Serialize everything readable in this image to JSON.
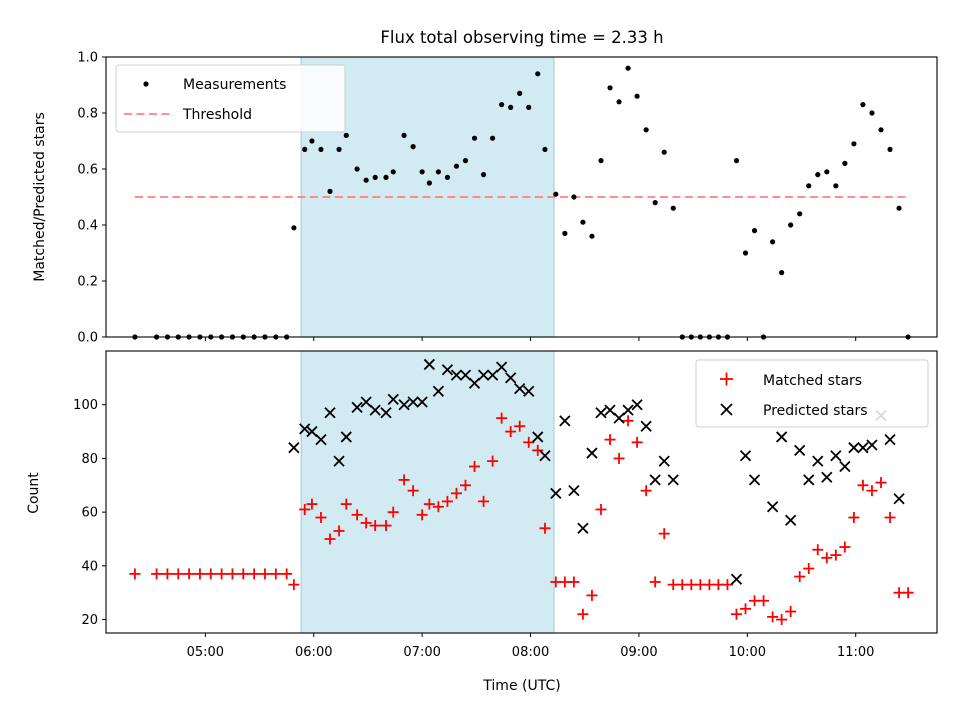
{
  "chart_data": {
    "type": "scatter",
    "title": "Flux total observing time = 2.33 h",
    "xlabel": "Time (UTC)",
    "x_ticks": [
      "05:00",
      "06:00",
      "07:00",
      "08:00",
      "09:00",
      "10:00",
      "11:00"
    ],
    "highlight_span": {
      "start": "05:53",
      "end": "08:13",
      "color": "#add8e6"
    },
    "panels": [
      {
        "id": "ratio",
        "ylabel": "Matched/Predicted stars",
        "ylim": [
          0,
          1.0
        ],
        "yticks": [
          "0.0",
          "0.2",
          "0.4",
          "0.6",
          "0.8",
          "1.0"
        ],
        "legend_position": "top-left",
        "series": [
          {
            "name": "Measurements",
            "marker": "dot",
            "color": "#000000",
            "points": [
              [
                "04:21",
                0
              ],
              [
                "04:33",
                0
              ],
              [
                "04:39",
                0
              ],
              [
                "04:45",
                0
              ],
              [
                "04:51",
                0
              ],
              [
                "04:57",
                0
              ],
              [
                "05:03",
                0
              ],
              [
                "05:09",
                0
              ],
              [
                "05:15",
                0
              ],
              [
                "05:21",
                0
              ],
              [
                "05:27",
                0
              ],
              [
                "05:33",
                0
              ],
              [
                "05:39",
                0
              ],
              [
                "05:45",
                0
              ],
              [
                "05:49",
                0.39
              ],
              [
                "05:55",
                0.67
              ],
              [
                "05:59",
                0.7
              ],
              [
                "06:04",
                0.67
              ],
              [
                "06:09",
                0.52
              ],
              [
                "06:14",
                0.67
              ],
              [
                "06:18",
                0.72
              ],
              [
                "06:24",
                0.6
              ],
              [
                "06:29",
                0.56
              ],
              [
                "06:34",
                0.57
              ],
              [
                "06:40",
                0.57
              ],
              [
                "06:44",
                0.59
              ],
              [
                "06:50",
                0.72
              ],
              [
                "06:55",
                0.68
              ],
              [
                "07:00",
                0.59
              ],
              [
                "07:04",
                0.55
              ],
              [
                "07:09",
                0.59
              ],
              [
                "07:14",
                0.57
              ],
              [
                "07:19",
                0.61
              ],
              [
                "07:24",
                0.63
              ],
              [
                "07:29",
                0.71
              ],
              [
                "07:34",
                0.58
              ],
              [
                "07:39",
                0.71
              ],
              [
                "07:44",
                0.83
              ],
              [
                "07:49",
                0.82
              ],
              [
                "07:54",
                0.87
              ],
              [
                "07:59",
                0.82
              ],
              [
                "08:04",
                0.94
              ],
              [
                "08:08",
                0.67
              ],
              [
                "08:14",
                0.51
              ],
              [
                "08:19",
                0.37
              ],
              [
                "08:24",
                0.5
              ],
              [
                "08:29",
                0.41
              ],
              [
                "08:34",
                0.36
              ],
              [
                "08:39",
                0.63
              ],
              [
                "08:44",
                0.89
              ],
              [
                "08:49",
                0.84
              ],
              [
                "08:54",
                0.96
              ],
              [
                "08:59",
                0.86
              ],
              [
                "09:04",
                0.74
              ],
              [
                "09:09",
                0.48
              ],
              [
                "09:14",
                0.66
              ],
              [
                "09:19",
                0.46
              ],
              [
                "09:24",
                0
              ],
              [
                "09:29",
                0
              ],
              [
                "09:34",
                0
              ],
              [
                "09:39",
                0
              ],
              [
                "09:44",
                0
              ],
              [
                "09:49",
                0
              ],
              [
                "09:54",
                0.63
              ],
              [
                "09:59",
                0.3
              ],
              [
                "10:04",
                0.38
              ],
              [
                "10:09",
                0
              ],
              [
                "10:14",
                0.34
              ],
              [
                "10:19",
                0.23
              ],
              [
                "10:24",
                0.4
              ],
              [
                "10:29",
                0.44
              ],
              [
                "10:34",
                0.54
              ],
              [
                "10:39",
                0.58
              ],
              [
                "10:44",
                0.59
              ],
              [
                "10:49",
                0.54
              ],
              [
                "10:54",
                0.62
              ],
              [
                "10:59",
                0.69
              ],
              [
                "11:04",
                0.83
              ],
              [
                "11:09",
                0.8
              ],
              [
                "11:14",
                0.74
              ],
              [
                "11:19",
                0.67
              ],
              [
                "11:24",
                0.46
              ],
              [
                "11:29",
                0
              ]
            ]
          },
          {
            "name": "Threshold",
            "marker": "dashed-line",
            "color": "#ff7f7f",
            "value": 0.5,
            "x_range": [
              "04:21",
              "11:29"
            ]
          }
        ]
      },
      {
        "id": "counts",
        "ylabel": "Count",
        "ylim": [
          15,
          120
        ],
        "yticks": [
          "20",
          "40",
          "60",
          "80",
          "100"
        ],
        "legend_position": "top-right",
        "series": [
          {
            "name": "Matched stars",
            "marker": "plus",
            "color": "#ff0000",
            "points": [
              [
                "04:21",
                37
              ],
              [
                "04:33",
                37
              ],
              [
                "04:39",
                37
              ],
              [
                "04:45",
                37
              ],
              [
                "04:51",
                37
              ],
              [
                "04:57",
                37
              ],
              [
                "05:03",
                37
              ],
              [
                "05:09",
                37
              ],
              [
                "05:15",
                37
              ],
              [
                "05:21",
                37
              ],
              [
                "05:27",
                37
              ],
              [
                "05:33",
                37
              ],
              [
                "05:39",
                37
              ],
              [
                "05:45",
                37
              ],
              [
                "05:49",
                33
              ],
              [
                "05:55",
                61
              ],
              [
                "05:59",
                63
              ],
              [
                "06:04",
                58
              ],
              [
                "06:09",
                50
              ],
              [
                "06:14",
                53
              ],
              [
                "06:18",
                63
              ],
              [
                "06:24",
                59
              ],
              [
                "06:29",
                56
              ],
              [
                "06:34",
                55
              ],
              [
                "06:40",
                55
              ],
              [
                "06:44",
                60
              ],
              [
                "06:50",
                72
              ],
              [
                "06:55",
                68
              ],
              [
                "07:00",
                59
              ],
              [
                "07:04",
                63
              ],
              [
                "07:09",
                62
              ],
              [
                "07:14",
                64
              ],
              [
                "07:19",
                67
              ],
              [
                "07:24",
                70
              ],
              [
                "07:29",
                77
              ],
              [
                "07:34",
                64
              ],
              [
                "07:39",
                79
              ],
              [
                "07:44",
                95
              ],
              [
                "07:49",
                90
              ],
              [
                "07:54",
                92
              ],
              [
                "07:59",
                86
              ],
              [
                "08:04",
                83
              ],
              [
                "08:08",
                54
              ],
              [
                "08:14",
                34
              ],
              [
                "08:19",
                34
              ],
              [
                "08:24",
                34
              ],
              [
                "08:29",
                22
              ],
              [
                "08:34",
                29
              ],
              [
                "08:39",
                61
              ],
              [
                "08:44",
                87
              ],
              [
                "08:49",
                80
              ],
              [
                "08:54",
                94
              ],
              [
                "08:59",
                86
              ],
              [
                "09:04",
                68
              ],
              [
                "09:09",
                34
              ],
              [
                "09:14",
                52
              ],
              [
                "09:19",
                33
              ],
              [
                "09:24",
                33
              ],
              [
                "09:29",
                33
              ],
              [
                "09:34",
                33
              ],
              [
                "09:39",
                33
              ],
              [
                "09:44",
                33
              ],
              [
                "09:49",
                33
              ],
              [
                "09:54",
                22
              ],
              [
                "09:59",
                24
              ],
              [
                "10:04",
                27
              ],
              [
                "10:09",
                27
              ],
              [
                "10:14",
                21
              ],
              [
                "10:19",
                20
              ],
              [
                "10:24",
                23
              ],
              [
                "10:29",
                36
              ],
              [
                "10:34",
                39
              ],
              [
                "10:39",
                46
              ],
              [
                "10:44",
                43
              ],
              [
                "10:49",
                44
              ],
              [
                "10:54",
                47
              ],
              [
                "10:59",
                58
              ],
              [
                "11:04",
                70
              ],
              [
                "11:09",
                68
              ],
              [
                "11:14",
                71
              ],
              [
                "11:19",
                58
              ],
              [
                "11:24",
                30
              ],
              [
                "11:29",
                30
              ]
            ]
          },
          {
            "name": "Predicted stars",
            "marker": "x",
            "color": "#000000",
            "points": [
              [
                "05:49",
                84
              ],
              [
                "05:55",
                91
              ],
              [
                "05:59",
                90
              ],
              [
                "06:04",
                87
              ],
              [
                "06:09",
                97
              ],
              [
                "06:14",
                79
              ],
              [
                "06:18",
                88
              ],
              [
                "06:24",
                99
              ],
              [
                "06:29",
                101
              ],
              [
                "06:34",
                98
              ],
              [
                "06:40",
                97
              ],
              [
                "06:44",
                102
              ],
              [
                "06:50",
                100
              ],
              [
                "06:55",
                101
              ],
              [
                "07:00",
                101
              ],
              [
                "07:04",
                115
              ],
              [
                "07:09",
                105
              ],
              [
                "07:14",
                113
              ],
              [
                "07:19",
                111
              ],
              [
                "07:24",
                111
              ],
              [
                "07:29",
                108
              ],
              [
                "07:34",
                111
              ],
              [
                "07:39",
                111
              ],
              [
                "07:44",
                114
              ],
              [
                "07:49",
                110
              ],
              [
                "07:54",
                106
              ],
              [
                "07:59",
                105
              ],
              [
                "08:04",
                88
              ],
              [
                "08:08",
                81
              ],
              [
                "08:14",
                67
              ],
              [
                "08:19",
                94
              ],
              [
                "08:24",
                68
              ],
              [
                "08:29",
                54
              ],
              [
                "08:34",
                82
              ],
              [
                "08:39",
                97
              ],
              [
                "08:44",
                98
              ],
              [
                "08:49",
                95
              ],
              [
                "08:54",
                98
              ],
              [
                "08:59",
                100
              ],
              [
                "09:04",
                92
              ],
              [
                "09:09",
                72
              ],
              [
                "09:14",
                79
              ],
              [
                "09:19",
                72
              ],
              [
                "09:54",
                35
              ],
              [
                "09:59",
                81
              ],
              [
                "10:04",
                72
              ],
              [
                "10:14",
                62
              ],
              [
                "10:19",
                88
              ],
              [
                "10:24",
                57
              ],
              [
                "10:29",
                83
              ],
              [
                "10:34",
                72
              ],
              [
                "10:39",
                79
              ],
              [
                "10:44",
                73
              ],
              [
                "10:49",
                81
              ],
              [
                "10:54",
                77
              ],
              [
                "10:59",
                84
              ],
              [
                "11:04",
                84
              ],
              [
                "11:09",
                85
              ],
              [
                "11:14",
                96
              ],
              [
                "11:19",
                87
              ],
              [
                "11:24",
                65
              ]
            ]
          }
        ]
      }
    ]
  }
}
